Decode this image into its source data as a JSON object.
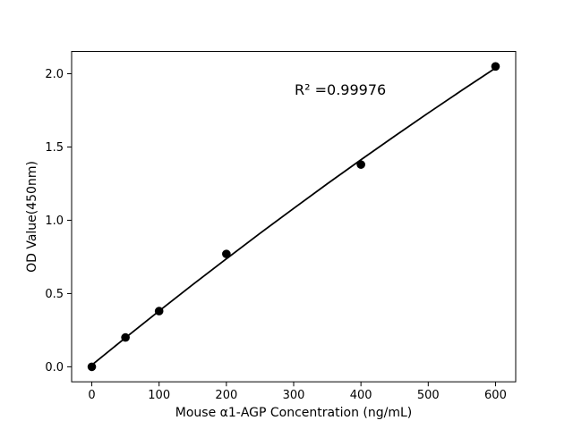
{
  "figure": {
    "background": "#ffffff"
  },
  "chart_data": {
    "type": "scatter",
    "xlabel": "Mouse α1-AGP Concentration (ng/mL)",
    "ylabel": "OD Value(450nm)",
    "annotation": "R² =0.99976",
    "r_squared": 0.99976,
    "x_ticks": {
      "values": [
        0,
        100,
        200,
        300,
        400,
        500,
        600
      ],
      "labels": [
        "0",
        "100",
        "200",
        "300",
        "400",
        "500",
        "600"
      ]
    },
    "y_ticks": {
      "values": [
        0.0,
        0.5,
        1.0,
        1.5,
        2.0
      ],
      "labels": [
        "0.0",
        "0.5",
        "1.0",
        "1.5",
        "2.0"
      ]
    },
    "xlim": [
      -30,
      630
    ],
    "ylim": [
      -0.1025,
      2.1525
    ],
    "grid": false,
    "marker_color": "#000000",
    "line_color": "#000000",
    "points": [
      {
        "x": 0,
        "y": 0.0
      },
      {
        "x": 50,
        "y": 0.2
      },
      {
        "x": 100,
        "y": 0.38
      },
      {
        "x": 200,
        "y": 0.77
      },
      {
        "x": 400,
        "y": 1.38
      },
      {
        "x": 600,
        "y": 2.05
      }
    ],
    "fit_line": {
      "x": [
        0,
        50,
        100,
        150,
        200,
        250,
        300,
        350,
        400,
        450,
        500,
        550,
        600
      ],
      "y": [
        0.012,
        0.198,
        0.381,
        0.561,
        0.737,
        0.911,
        1.081,
        1.249,
        1.413,
        1.574,
        1.732,
        1.887,
        2.039
      ]
    }
  }
}
